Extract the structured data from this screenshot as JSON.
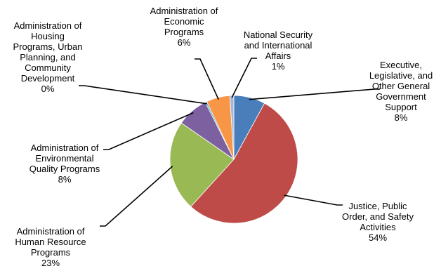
{
  "chart_data": {
    "type": "pie",
    "slices": [
      {
        "label": [
          "Executive,",
          "Legislative, and",
          "Other General",
          "Government",
          "Support"
        ],
        "value_text": "8%",
        "value": 8,
        "color": "#4a7ebb"
      },
      {
        "label": [
          "Justice, Public",
          "Order, and Safety",
          "Activities"
        ],
        "value_text": "54%",
        "value": 54,
        "color": "#be4b48"
      },
      {
        "label": [
          "Administration of",
          "Human Resource",
          "Programs"
        ],
        "value_text": "23%",
        "value": 23,
        "color": "#98b954"
      },
      {
        "label": [
          "Administration of",
          "Environmental",
          "Quality Programs"
        ],
        "value_text": "8%",
        "value": 8,
        "color": "#7d60a0"
      },
      {
        "label": [
          "Administration of",
          "Housing",
          "Programs, Urban",
          "Planning, and",
          "Community",
          "Development"
        ],
        "value_text": "0%",
        "value": 0.4,
        "color": "#46aac5"
      },
      {
        "label": [
          "Administration of",
          "Economic",
          "Programs"
        ],
        "value_text": "6%",
        "value": 6,
        "color": "#f79646"
      },
      {
        "label": [
          "National Security",
          "and International",
          "Affairs"
        ],
        "value_text": "1%",
        "value": 1,
        "color": "#a5b6d8"
      }
    ],
    "legend": "none",
    "start": "top",
    "direction": "clockwise"
  }
}
